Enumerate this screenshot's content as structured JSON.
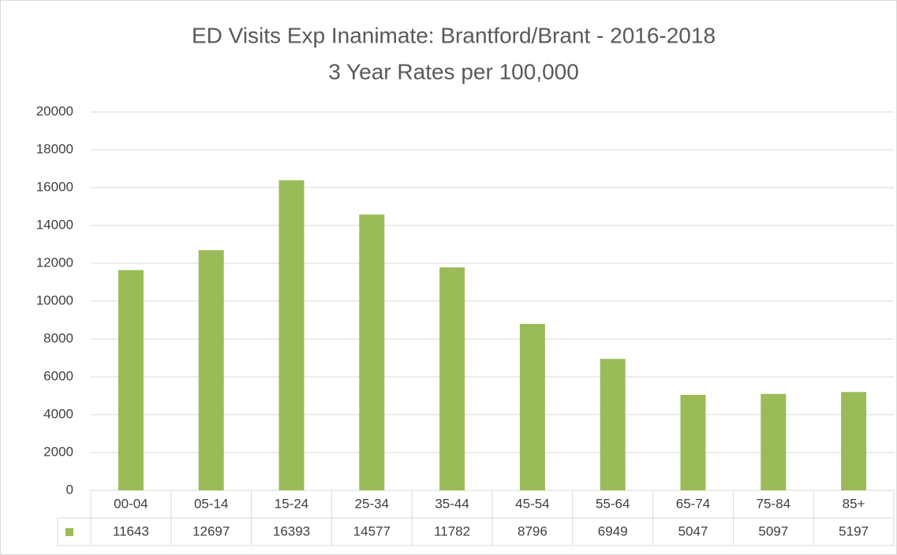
{
  "chart_data": {
    "type": "bar",
    "title": "ED Visits Exp Inanimate: Brantford/Brant -  2016-2018",
    "subtitle": "3 Year Rates per 100,000",
    "categories": [
      "00-04",
      "05-14",
      "15-24",
      "25-34",
      "35-44",
      "45-54",
      "55-64",
      "65-74",
      "75-84",
      "85+"
    ],
    "values": [
      11643,
      12697,
      16393,
      14577,
      11782,
      8796,
      6949,
      5047,
      5097,
      5197
    ],
    "color": "#9bbb59",
    "ylim": [
      0,
      20000
    ],
    "yticks": [
      0,
      2000,
      4000,
      6000,
      8000,
      10000,
      12000,
      14000,
      16000,
      18000,
      20000
    ],
    "grid": true,
    "data_table": true
  }
}
